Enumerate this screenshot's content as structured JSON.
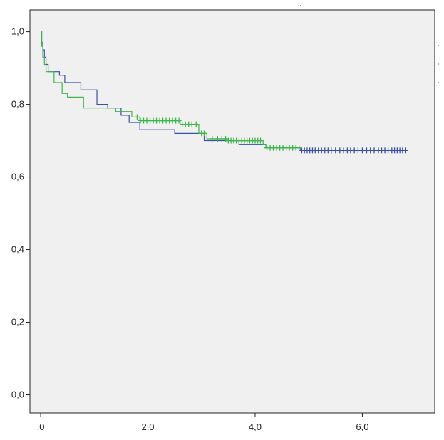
{
  "chart_data": {
    "type": "line",
    "subtype": "kaplan-meier step curve with censor marks",
    "title": "",
    "xlabel": "",
    "ylabel": "",
    "xlim": [
      -0.2,
      7.35
    ],
    "ylim": [
      -0.05,
      1.06
    ],
    "x_ticks": [
      0,
      2,
      4,
      6
    ],
    "x_tick_labels": [
      ",0",
      "2,0",
      "4,0",
      "6,0"
    ],
    "y_ticks": [
      0,
      0.2,
      0.4,
      0.6,
      0.8,
      1.0
    ],
    "y_tick_labels": [
      "0,0",
      "0,2",
      "0,4",
      "0,6",
      "0,8",
      "1,0"
    ],
    "grid": false,
    "legend": "none visible",
    "plot_background": "#f0f0f0",
    "series": [
      {
        "color": "#3a4fa8",
        "steps": [
          [
            0,
            1.0
          ],
          [
            0.02,
            0.97
          ],
          [
            0.04,
            0.95
          ],
          [
            0.07,
            0.93
          ],
          [
            0.1,
            0.91
          ],
          [
            0.14,
            0.89
          ],
          [
            0.35,
            0.88
          ],
          [
            0.45,
            0.86
          ],
          [
            0.75,
            0.84
          ],
          [
            1.05,
            0.8
          ],
          [
            1.25,
            0.79
          ],
          [
            1.5,
            0.77
          ],
          [
            1.65,
            0.75
          ],
          [
            1.85,
            0.73
          ],
          [
            2.5,
            0.72
          ],
          [
            3.05,
            0.7
          ],
          [
            3.7,
            0.69
          ],
          [
            4.2,
            0.68
          ],
          [
            4.85,
            0.673
          ],
          [
            6.85,
            0.673
          ]
        ],
        "censor_x": [
          4.87,
          4.92,
          4.97,
          5.02,
          5.07,
          5.12,
          5.18,
          5.24,
          5.3,
          5.36,
          5.42,
          5.5,
          5.58,
          5.65,
          5.72,
          5.78,
          5.85,
          5.92,
          6.0,
          6.08,
          6.15,
          6.22,
          6.3,
          6.36,
          6.42,
          6.48,
          6.55,
          6.6,
          6.65,
          6.7,
          6.75,
          6.8
        ]
      },
      {
        "color": "#3cb54a",
        "steps": [
          [
            0,
            1.0
          ],
          [
            0.02,
            0.96
          ],
          [
            0.04,
            0.93
          ],
          [
            0.07,
            0.91
          ],
          [
            0.1,
            0.89
          ],
          [
            0.25,
            0.86
          ],
          [
            0.4,
            0.83
          ],
          [
            0.5,
            0.82
          ],
          [
            0.8,
            0.79
          ],
          [
            1.4,
            0.78
          ],
          [
            1.7,
            0.765
          ],
          [
            1.85,
            0.755
          ],
          [
            2.6,
            0.745
          ],
          [
            2.95,
            0.72
          ],
          [
            3.1,
            0.705
          ],
          [
            3.5,
            0.7
          ],
          [
            4.15,
            0.69
          ],
          [
            4.2,
            0.68
          ],
          [
            4.85,
            0.68
          ]
        ],
        "censor_x": [
          1.8,
          1.86,
          1.92,
          1.98,
          2.04,
          2.1,
          2.16,
          2.22,
          2.28,
          2.34,
          2.4,
          2.46,
          2.52,
          2.58,
          2.64,
          2.7,
          2.76,
          2.82,
          2.9,
          3.0,
          3.05,
          3.2,
          3.3,
          3.38,
          3.45,
          3.5,
          3.55,
          3.6,
          3.65,
          3.7,
          3.75,
          3.8,
          3.85,
          3.9,
          3.95,
          4.0,
          4.05,
          4.1,
          4.22,
          4.28,
          4.34,
          4.4,
          4.46,
          4.52,
          4.58,
          4.64,
          4.7,
          4.76,
          4.82
        ]
      }
    ]
  }
}
